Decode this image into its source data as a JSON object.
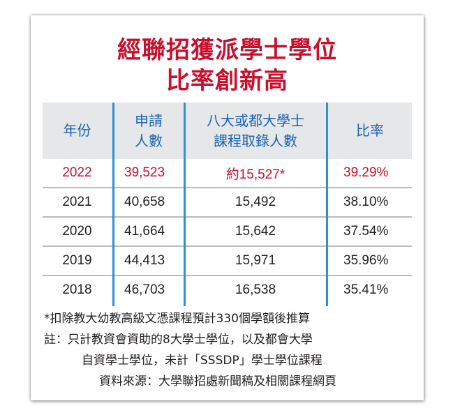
{
  "colors": {
    "title": "#c8102e",
    "highlight_row": "#c8102e",
    "header_text": "#1a63b5",
    "divider": "#2f8fd8",
    "header_bg": "#e6e7e8",
    "body_text": "#231f20"
  },
  "title": {
    "line1": "經聯招獲派學士學位",
    "line2": "比率創新高"
  },
  "table": {
    "headers": {
      "year": "年份",
      "applicants_l1": "申請",
      "applicants_l2": "人數",
      "admitted_l1": "八大或都大學士",
      "admitted_l2": "課程取錄人數",
      "ratio": "比率"
    },
    "rows": [
      {
        "year": "2022",
        "applicants": "39,523",
        "admitted": "約15,527*",
        "ratio": "39.29%",
        "highlight": true
      },
      {
        "year": "2021",
        "applicants": "40,658",
        "admitted": "15,492",
        "ratio": "38.10%"
      },
      {
        "year": "2020",
        "applicants": "41,664",
        "admitted": "15,642",
        "ratio": "37.54%"
      },
      {
        "year": "2019",
        "applicants": "44,413",
        "admitted": "15,971",
        "ratio": "35.96%"
      },
      {
        "year": "2018",
        "applicants": "46,703",
        "admitted": "16,538",
        "ratio": "35.41%"
      }
    ]
  },
  "notes": {
    "footnote": "*扣除教大幼教高級文憑課程預計330個學額後推算",
    "note_line1": "註：只計教資會資助的8大學士學位，以及都會大學",
    "note_line2": "自資學士學位，未計「SSSDP」學士學位課程",
    "source": "資料來源：大學聯招處新聞稿及相關課程網頁"
  }
}
